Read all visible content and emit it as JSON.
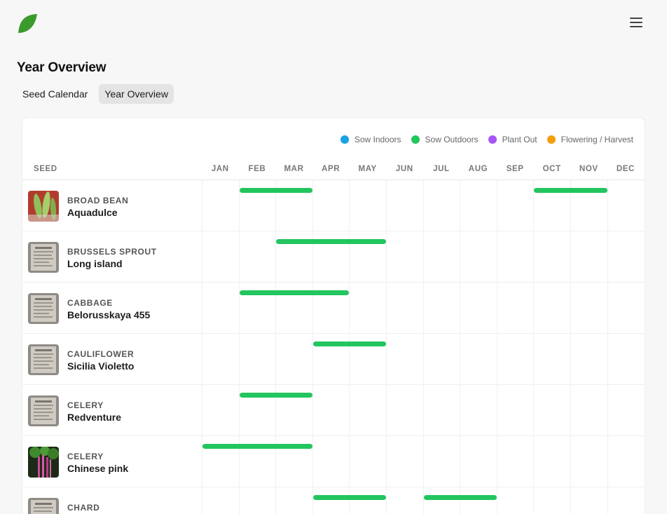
{
  "nav": {
    "logo_icon": "leaf-icon",
    "menu_icon": "hamburger-menu-icon"
  },
  "page_title": "Year Overview",
  "tabs": [
    {
      "label": "Seed Calendar",
      "active": false
    },
    {
      "label": "Year Overview",
      "active": true
    }
  ],
  "legend": [
    {
      "label": "Sow Indoors",
      "color": "#1ba2e4"
    },
    {
      "label": "Sow Outdoors",
      "color": "#22c55e"
    },
    {
      "label": "Plant Out",
      "color": "#a855f7"
    },
    {
      "label": "Flowering / Harvest",
      "color": "#f59e0b"
    }
  ],
  "table": {
    "seed_header": "SEED",
    "months": [
      "JAN",
      "FEB",
      "MAR",
      "APR",
      "MAY",
      "JUN",
      "JUL",
      "AUG",
      "SEP",
      "OCT",
      "NOV",
      "DEC"
    ]
  },
  "seeds": [
    {
      "type": "BROAD BEAN",
      "variety": "Aquadulce",
      "thumb": "green-pods-photo",
      "periods": [
        {
          "activity": "Sow Outdoors",
          "start_month": 2,
          "end_month": 3
        },
        {
          "activity": "Sow Outdoors",
          "start_month": 10,
          "end_month": 11
        }
      ]
    },
    {
      "type": "BRUSSELS SPROUT",
      "variety": "Long island",
      "thumb": "seed-packet-photo",
      "periods": [
        {
          "activity": "Sow Outdoors",
          "start_month": 3,
          "end_month": 5
        }
      ]
    },
    {
      "type": "CABBAGE",
      "variety": "Belorusskaya 455",
      "thumb": "seed-packet-photo",
      "periods": [
        {
          "activity": "Sow Outdoors",
          "start_month": 2,
          "end_month": 4
        }
      ]
    },
    {
      "type": "CAULIFLOWER",
      "variety": "Sicilia Violetto",
      "thumb": "seed-packet-photo",
      "periods": [
        {
          "activity": "Sow Outdoors",
          "start_month": 4,
          "end_month": 5
        }
      ]
    },
    {
      "type": "CELERY",
      "variety": "Redventure",
      "thumb": "seed-packet-photo",
      "periods": [
        {
          "activity": "Sow Outdoors",
          "start_month": 2,
          "end_month": 3
        }
      ]
    },
    {
      "type": "CELERY",
      "variety": "Chinese pink",
      "thumb": "pink-celery-photo",
      "periods": [
        {
          "activity": "Sow Outdoors",
          "start_month": 1,
          "end_month": 3
        }
      ]
    },
    {
      "type": "CHARD",
      "variety": "",
      "thumb": "seed-packet-photo",
      "periods": [
        {
          "activity": "Sow Outdoors",
          "start_month": 4,
          "end_month": 5
        },
        {
          "activity": "Sow Outdoors",
          "start_month": 7,
          "end_month": 8
        }
      ]
    }
  ]
}
